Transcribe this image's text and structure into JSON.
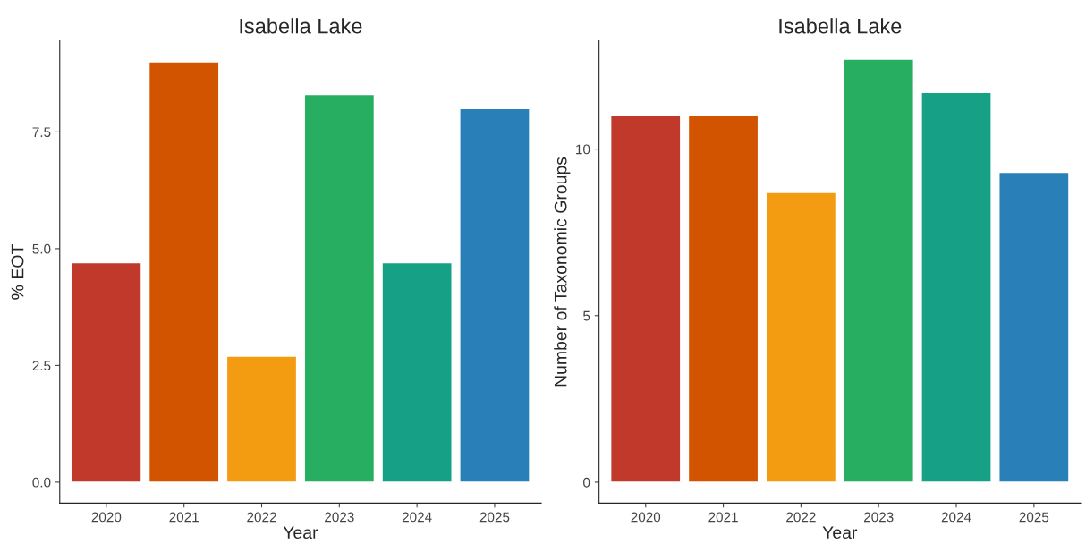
{
  "chart_data": [
    {
      "type": "bar",
      "title": "Isabella Lake",
      "xlabel": "Year",
      "ylabel": "% EOT",
      "categories": [
        "2020",
        "2021",
        "2022",
        "2023",
        "2024",
        "2025"
      ],
      "values": [
        4.7,
        9.0,
        2.7,
        8.3,
        4.7,
        8.0
      ],
      "colors": [
        "#c0392b",
        "#d35400",
        "#f39c12",
        "#27ae60",
        "#16a085",
        "#2980b9"
      ],
      "ylim": [
        -0.45,
        9.45
      ],
      "yticks": [
        {
          "value": 0,
          "label": "0.0"
        },
        2.5,
        {
          "value": 5,
          "label": "5.0"
        },
        7.5
      ],
      "grid": false,
      "legend": false
    },
    {
      "type": "bar",
      "title": "Isabella Lake",
      "xlabel": "Year",
      "ylabel": "Number of Taxonomic Groups",
      "categories": [
        "2020",
        "2021",
        "2022",
        "2023",
        "2024",
        "2025"
      ],
      "values": [
        11,
        11,
        8.7,
        12.7,
        11.7,
        9.3
      ],
      "colors": [
        "#c0392b",
        "#d35400",
        "#f39c12",
        "#27ae60",
        "#16a085",
        "#2980b9"
      ],
      "ylim": [
        -0.63,
        13.25
      ],
      "yticks": [
        0,
        5,
        10
      ],
      "grid": false,
      "legend": false
    }
  ]
}
